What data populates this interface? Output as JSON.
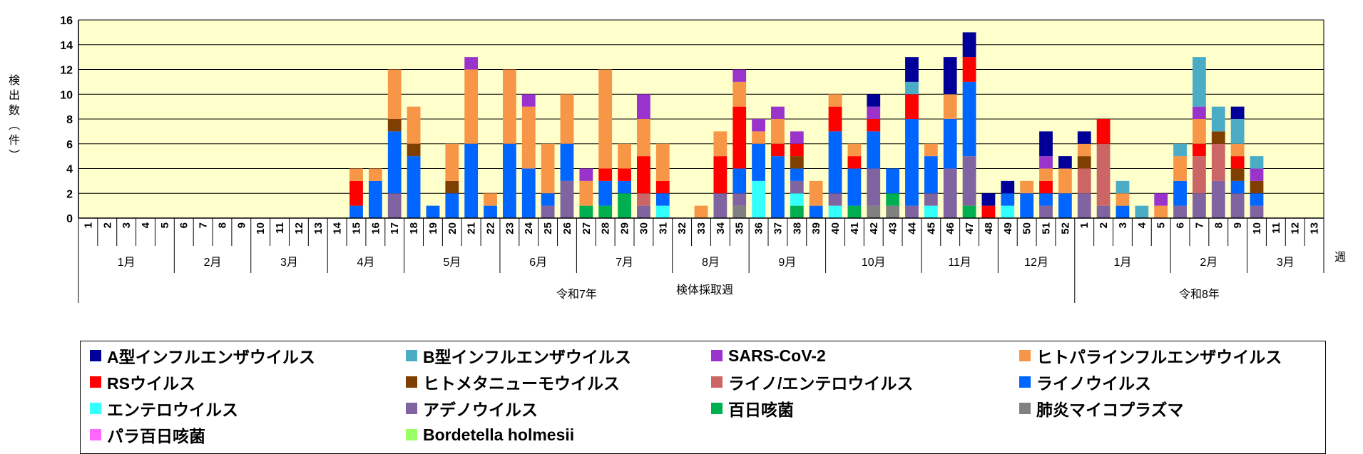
{
  "chart_data": {
    "type": "bar",
    "stacked": true,
    "ylabel": "検出数（件）",
    "xlabel": "検体採取週",
    "week_label": "週",
    "ylim": [
      0,
      16
    ],
    "yticks": [
      0,
      2,
      4,
      6,
      8,
      10,
      12,
      14,
      16
    ],
    "colors": {
      "plot_bg": "#ffffcc",
      "A型インフルエンザウイルス": "#000099",
      "B型インフルエンザウイルス": "#4bacc6",
      "SARS-CoV-2": "#9933cc",
      "ヒトパラインフルエンザウイルス": "#f79646",
      "RSウイルス": "#ff0000",
      "ヒトメタニューモウイルス": "#7f3f00",
      "ライノ/エンテロウイルス": "#cc6666",
      "ライノウイルス": "#0066ff",
      "エンテロウイルス": "#33ffff",
      "アデノウイルス": "#8064a2",
      "百日咳菌": "#00b050",
      "肺炎マイコプラズマ": "#808080",
      "パラ百日咳菌": "#ff66ff",
      "Bordetella holmesii": "#99ff66"
    },
    "categories": [
      "1",
      "2",
      "3",
      "4",
      "5",
      "6",
      "7",
      "8",
      "9",
      "10",
      "11",
      "12",
      "13",
      "14",
      "15",
      "16",
      "17",
      "18",
      "19",
      "20",
      "21",
      "22",
      "23",
      "24",
      "25",
      "26",
      "27",
      "28",
      "29",
      "30",
      "31",
      "32",
      "33",
      "34",
      "35",
      "36",
      "37",
      "38",
      "39",
      "40",
      "41",
      "42",
      "43",
      "44",
      "45",
      "46",
      "47",
      "48",
      "49",
      "50",
      "51",
      "52",
      "1",
      "2",
      "3",
      "4",
      "5",
      "6",
      "7",
      "8",
      "9",
      "10",
      "11",
      "12",
      "13"
    ],
    "months": [
      {
        "label": "1月",
        "span": 5
      },
      {
        "label": "2月",
        "span": 4
      },
      {
        "label": "3月",
        "span": 4
      },
      {
        "label": "4月",
        "span": 4
      },
      {
        "label": "5月",
        "span": 5
      },
      {
        "label": "6月",
        "span": 4
      },
      {
        "label": "7月",
        "span": 5
      },
      {
        "label": "8月",
        "span": 4
      },
      {
        "label": "9月",
        "span": 4
      },
      {
        "label": "10月",
        "span": 5
      },
      {
        "label": "11月",
        "span": 4
      },
      {
        "label": "12月",
        "span": 4
      },
      {
        "label": "1月",
        "span": 5
      },
      {
        "label": "2月",
        "span": 4
      },
      {
        "label": "3月",
        "span": 4
      }
    ],
    "years": [
      {
        "label": "令和7年",
        "span": 52
      },
      {
        "label": "令和8年",
        "span": 13
      }
    ],
    "series": [
      {
        "name": "A型インフルエンザウイルス",
        "values": [
          0,
          0,
          0,
          0,
          0,
          0,
          0,
          0,
          0,
          0,
          0,
          0,
          0,
          0,
          0,
          0,
          0,
          0,
          0,
          0,
          0,
          0,
          0,
          0,
          0,
          0,
          0,
          0,
          0,
          0,
          0,
          0,
          0,
          0,
          0,
          0,
          0,
          0,
          0,
          0,
          0,
          1,
          0,
          2,
          0,
          3,
          2,
          1,
          1,
          0,
          2,
          1,
          1,
          0,
          0,
          0,
          0,
          0,
          0,
          0,
          1,
          0,
          0,
          0,
          0
        ]
      },
      {
        "name": "B型インフルエンザウイルス",
        "values": [
          0,
          0,
          0,
          0,
          0,
          0,
          0,
          0,
          0,
          0,
          0,
          0,
          0,
          0,
          0,
          0,
          0,
          0,
          0,
          0,
          0,
          0,
          0,
          0,
          0,
          0,
          0,
          0,
          0,
          0,
          0,
          0,
          0,
          0,
          0,
          0,
          0,
          0,
          0,
          0,
          0,
          0,
          0,
          1,
          0,
          0,
          0,
          0,
          0,
          0,
          0,
          0,
          0,
          0,
          1,
          1,
          0,
          1,
          4,
          2,
          2,
          1,
          0,
          0,
          0
        ]
      },
      {
        "name": "SARS-CoV-2",
        "values": [
          0,
          0,
          0,
          0,
          0,
          0,
          0,
          0,
          0,
          0,
          0,
          0,
          0,
          0,
          0,
          0,
          0,
          0,
          0,
          0,
          1,
          0,
          0,
          1,
          0,
          0,
          1,
          0,
          0,
          2,
          0,
          0,
          0,
          0,
          1,
          1,
          1,
          1,
          0,
          0,
          0,
          1,
          0,
          0,
          0,
          0,
          0,
          0,
          0,
          0,
          1,
          0,
          0,
          0,
          0,
          0,
          1,
          0,
          1,
          0,
          0,
          1,
          0,
          0,
          0
        ]
      },
      {
        "name": "ヒトパラインフルエンザウイルス",
        "values": [
          0,
          0,
          0,
          0,
          0,
          0,
          0,
          0,
          0,
          0,
          0,
          0,
          0,
          0,
          1,
          1,
          4,
          3,
          0,
          3,
          6,
          1,
          6,
          5,
          4,
          4,
          2,
          8,
          2,
          3,
          3,
          0,
          1,
          2,
          2,
          1,
          2,
          0,
          2,
          1,
          1,
          0,
          0,
          0,
          1,
          2,
          0,
          0,
          0,
          1,
          1,
          2,
          1,
          0,
          1,
          0,
          1,
          2,
          2,
          0,
          1,
          0,
          0,
          0,
          0
        ]
      },
      {
        "name": "RSウイルス",
        "values": [
          0,
          0,
          0,
          0,
          0,
          0,
          0,
          0,
          0,
          0,
          0,
          0,
          0,
          0,
          2,
          0,
          0,
          0,
          0,
          0,
          0,
          0,
          0,
          0,
          0,
          0,
          0,
          1,
          1,
          3,
          1,
          0,
          0,
          3,
          5,
          0,
          1,
          1,
          0,
          2,
          1,
          1,
          0,
          2,
          0,
          0,
          2,
          1,
          0,
          0,
          1,
          0,
          0,
          2,
          0,
          0,
          0,
          0,
          1,
          0,
          1,
          0,
          0,
          0,
          0
        ]
      },
      {
        "name": "ヒトメタニューモウイルス",
        "values": [
          0,
          0,
          0,
          0,
          0,
          0,
          0,
          0,
          0,
          0,
          0,
          0,
          0,
          0,
          0,
          0,
          1,
          1,
          0,
          1,
          0,
          0,
          0,
          0,
          0,
          0,
          0,
          0,
          0,
          0,
          0,
          0,
          0,
          0,
          0,
          0,
          0,
          1,
          0,
          0,
          0,
          0,
          0,
          0,
          0,
          0,
          0,
          0,
          0,
          0,
          0,
          0,
          1,
          0,
          0,
          0,
          0,
          0,
          0,
          1,
          1,
          1,
          0,
          0,
          0
        ]
      },
      {
        "name": "ライノ/エンテロウイルス",
        "values": [
          0,
          0,
          0,
          0,
          0,
          0,
          0,
          0,
          0,
          0,
          0,
          0,
          0,
          0,
          0,
          0,
          0,
          0,
          0,
          0,
          0,
          0,
          0,
          0,
          0,
          0,
          0,
          0,
          0,
          1,
          0,
          0,
          0,
          0,
          0,
          0,
          0,
          0,
          0,
          0,
          0,
          0,
          0,
          0,
          0,
          0,
          0,
          0,
          0,
          0,
          0,
          0,
          2,
          5,
          0,
          0,
          0,
          0,
          3,
          3,
          0,
          0,
          0,
          0,
          0
        ]
      },
      {
        "name": "ライノウイルス",
        "values": [
          0,
          0,
          0,
          0,
          0,
          0,
          0,
          0,
          0,
          0,
          0,
          0,
          0,
          0,
          1,
          3,
          5,
          5,
          1,
          2,
          6,
          1,
          6,
          4,
          1,
          3,
          0,
          2,
          1,
          0,
          1,
          0,
          0,
          0,
          2,
          3,
          5,
          1,
          1,
          5,
          3,
          3,
          2,
          7,
          3,
          4,
          6,
          0,
          1,
          2,
          1,
          2,
          0,
          0,
          1,
          0,
          0,
          2,
          0,
          0,
          1,
          1,
          0,
          0,
          0
        ]
      },
      {
        "name": "エンテロウイルス",
        "values": [
          0,
          0,
          0,
          0,
          0,
          0,
          0,
          0,
          0,
          0,
          0,
          0,
          0,
          0,
          0,
          0,
          0,
          0,
          0,
          0,
          0,
          0,
          0,
          0,
          0,
          0,
          0,
          0,
          0,
          0,
          1,
          0,
          0,
          0,
          0,
          3,
          0,
          1,
          0,
          1,
          0,
          0,
          0,
          0,
          1,
          0,
          0,
          0,
          1,
          0,
          0,
          0,
          0,
          0,
          0,
          0,
          0,
          0,
          0,
          0,
          0,
          0,
          0,
          0,
          0
        ]
      },
      {
        "name": "アデノウイルス",
        "values": [
          0,
          0,
          0,
          0,
          0,
          0,
          0,
          0,
          0,
          0,
          0,
          0,
          0,
          0,
          0,
          0,
          2,
          0,
          0,
          0,
          0,
          0,
          0,
          0,
          1,
          3,
          0,
          0,
          0,
          1,
          0,
          0,
          0,
          2,
          1,
          0,
          0,
          1,
          0,
          1,
          0,
          3,
          0,
          1,
          1,
          4,
          4,
          0,
          0,
          0,
          1,
          0,
          2,
          1,
          0,
          0,
          0,
          1,
          2,
          3,
          2,
          1,
          0,
          0,
          0
        ]
      },
      {
        "name": "百日咳菌",
        "values": [
          0,
          0,
          0,
          0,
          0,
          0,
          0,
          0,
          0,
          0,
          0,
          0,
          0,
          0,
          0,
          0,
          0,
          0,
          0,
          0,
          0,
          0,
          0,
          0,
          0,
          0,
          1,
          1,
          2,
          0,
          0,
          0,
          0,
          0,
          0,
          0,
          0,
          1,
          0,
          0,
          1,
          0,
          1,
          0,
          0,
          0,
          1,
          0,
          0,
          0,
          0,
          0,
          0,
          0,
          0,
          0,
          0,
          0,
          0,
          0,
          0,
          0,
          0,
          0,
          0
        ]
      },
      {
        "name": "肺炎マイコプラズマ",
        "values": [
          0,
          0,
          0,
          0,
          0,
          0,
          0,
          0,
          0,
          0,
          0,
          0,
          0,
          0,
          0,
          0,
          0,
          0,
          0,
          0,
          0,
          0,
          0,
          0,
          0,
          0,
          0,
          0,
          0,
          0,
          0,
          0,
          0,
          0,
          1,
          0,
          0,
          0,
          0,
          0,
          0,
          1,
          1,
          0,
          0,
          0,
          0,
          0,
          0,
          0,
          0,
          0,
          0,
          0,
          0,
          0,
          0,
          0,
          0,
          0,
          0,
          0,
          0,
          0,
          0
        ]
      },
      {
        "name": "パラ百日咳菌",
        "values": [
          0,
          0,
          0,
          0,
          0,
          0,
          0,
          0,
          0,
          0,
          0,
          0,
          0,
          0,
          0,
          0,
          0,
          0,
          0,
          0,
          0,
          0,
          0,
          0,
          0,
          0,
          0,
          0,
          0,
          0,
          0,
          0,
          0,
          0,
          0,
          0,
          0,
          0,
          0,
          0,
          0,
          0,
          0,
          0,
          0,
          0,
          0,
          0,
          0,
          0,
          0,
          0,
          0,
          0,
          0,
          0,
          0,
          0,
          0,
          0,
          0,
          0,
          0,
          0,
          0
        ]
      },
      {
        "name": "Bordetella holmesii",
        "values": [
          0,
          0,
          0,
          0,
          0,
          0,
          0,
          0,
          0,
          0,
          0,
          0,
          0,
          0,
          0,
          0,
          0,
          0,
          0,
          0,
          0,
          0,
          0,
          0,
          0,
          0,
          0,
          0,
          0,
          0,
          0,
          0,
          0,
          0,
          0,
          0,
          0,
          0,
          0,
          0,
          0,
          0,
          0,
          0,
          0,
          0,
          0,
          0,
          0,
          0,
          0,
          0,
          0,
          0,
          0,
          0,
          0,
          0,
          0,
          0,
          0,
          0,
          0,
          0,
          0
        ]
      }
    ],
    "stack_order": [
      "肺炎マイコプラズマ",
      "百日咳菌",
      "エンテロウイルス",
      "アデノウイルス",
      "ライノ/エンテロウイルス",
      "ライノウイルス",
      "ヒトメタニューモウイルス",
      "RSウイルス",
      "ヒトパラインフルエンザウイルス",
      "SARS-CoV-2",
      "B型インフルエンザウイルス",
      "A型インフルエンザウイルス",
      "パラ百日咳菌",
      "Bordetella holmesii"
    ],
    "legend": {
      "position": "bottom",
      "items": [
        "A型インフルエンザウイルス",
        "B型インフルエンザウイルス",
        "SARS-CoV-2",
        "ヒトパラインフルエンザウイルス",
        "RSウイルス",
        "ヒトメタニューモウイルス",
        "ライノ/エンテロウイルス",
        "ライノウイルス",
        "エンテロウイルス",
        "アデノウイルス",
        "百日咳菌",
        "肺炎マイコプラズマ",
        "パラ百日咳菌",
        "Bordetella holmesii"
      ]
    }
  }
}
